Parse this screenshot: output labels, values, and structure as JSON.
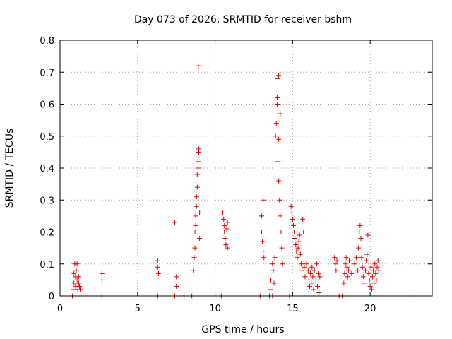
{
  "chart_data": {
    "type": "scatter",
    "title": "Day 073 of 2026, SRMTID for receiver bshm",
    "xlabel": "GPS time / hours",
    "ylabel": "SRMTID / TECUs",
    "xlim": [
      0,
      24
    ],
    "ylim": [
      0,
      0.8
    ],
    "xticks": [
      0,
      5,
      10,
      15,
      20
    ],
    "xtick_labels": [
      "0",
      "5",
      "10",
      "15",
      "20"
    ],
    "yticks": [
      0,
      0.1,
      0.2,
      0.3,
      0.4,
      0.5,
      0.6,
      0.7,
      0.8
    ],
    "ytick_labels": [
      "0",
      "0.1",
      "0.2",
      "0.3",
      "0.4",
      "0.5",
      "0.6",
      "0.7",
      "0.8"
    ],
    "grid": true,
    "marker": "+",
    "color": "#e00000",
    "series": [
      {
        "name": "SRMTID",
        "points": [
          [
            0.8,
            0.0
          ],
          [
            0.85,
            0.02
          ],
          [
            0.9,
            0.04
          ],
          [
            0.9,
            0.07
          ],
          [
            0.95,
            0.1
          ],
          [
            1.0,
            0.06
          ],
          [
            1.0,
            0.03
          ],
          [
            1.05,
            0.08
          ],
          [
            1.1,
            0.1
          ],
          [
            1.1,
            0.05
          ],
          [
            1.15,
            0.02
          ],
          [
            1.2,
            0.06
          ],
          [
            1.2,
            0.04
          ],
          [
            1.25,
            0.03
          ],
          [
            1.3,
            0.02
          ],
          [
            2.7,
            0.07
          ],
          [
            2.7,
            0.05
          ],
          [
            2.7,
            0.0
          ],
          [
            6.3,
            0.11
          ],
          [
            6.3,
            0.09
          ],
          [
            6.35,
            0.07
          ],
          [
            6.3,
            0.0
          ],
          [
            7.4,
            0.23
          ],
          [
            7.5,
            0.06
          ],
          [
            7.5,
            0.03
          ],
          [
            7.4,
            0.0
          ],
          [
            8.0,
            0.0
          ],
          [
            8.5,
            0.0
          ],
          [
            8.6,
            0.08
          ],
          [
            8.65,
            0.12
          ],
          [
            8.7,
            0.15
          ],
          [
            8.7,
            0.2
          ],
          [
            8.75,
            0.22
          ],
          [
            8.75,
            0.25
          ],
          [
            8.8,
            0.28
          ],
          [
            8.8,
            0.31
          ],
          [
            8.85,
            0.34
          ],
          [
            8.85,
            0.38
          ],
          [
            8.9,
            0.4
          ],
          [
            8.9,
            0.42
          ],
          [
            8.95,
            0.45
          ],
          [
            8.95,
            0.46
          ],
          [
            9.0,
            0.26
          ],
          [
            9.0,
            0.18
          ],
          [
            8.92,
            0.72
          ],
          [
            10.4,
            0.0
          ],
          [
            10.5,
            0.26
          ],
          [
            10.55,
            0.24
          ],
          [
            10.6,
            0.22
          ],
          [
            10.6,
            0.2
          ],
          [
            10.65,
            0.18
          ],
          [
            10.7,
            0.16
          ],
          [
            10.75,
            0.21
          ],
          [
            10.8,
            0.15
          ],
          [
            10.8,
            0.23
          ],
          [
            12.9,
            0.0
          ],
          [
            13.0,
            0.25
          ],
          [
            13.0,
            0.2
          ],
          [
            13.05,
            0.17
          ],
          [
            13.1,
            0.14
          ],
          [
            13.1,
            0.3
          ],
          [
            13.15,
            0.12
          ],
          [
            13.5,
            0.0
          ],
          [
            13.55,
            0.02
          ],
          [
            13.6,
            0.05
          ],
          [
            13.7,
            0.1
          ],
          [
            13.7,
            0.0
          ],
          [
            13.75,
            0.08
          ],
          [
            13.8,
            0.04
          ],
          [
            13.85,
            0.12
          ],
          [
            13.9,
            0.5
          ],
          [
            13.95,
            0.54
          ],
          [
            14.0,
            0.6
          ],
          [
            14.0,
            0.62
          ],
          [
            14.05,
            0.68
          ],
          [
            14.1,
            0.69
          ],
          [
            14.05,
            0.42
          ],
          [
            14.1,
            0.36
          ],
          [
            14.15,
            0.3
          ],
          [
            14.2,
            0.25
          ],
          [
            14.25,
            0.2
          ],
          [
            14.3,
            0.15
          ],
          [
            14.35,
            0.1
          ],
          [
            14.1,
            0.49
          ],
          [
            14.2,
            0.57
          ],
          [
            14.8,
            0.0
          ],
          [
            14.9,
            0.28
          ],
          [
            14.95,
            0.26
          ],
          [
            15.0,
            0.24
          ],
          [
            15.05,
            0.22
          ],
          [
            15.1,
            0.2
          ],
          [
            15.15,
            0.18
          ],
          [
            15.2,
            0.16
          ],
          [
            15.25,
            0.14
          ],
          [
            15.3,
            0.12
          ],
          [
            15.35,
            0.15
          ],
          [
            15.4,
            0.17
          ],
          [
            15.45,
            0.19
          ],
          [
            15.5,
            0.13
          ],
          [
            15.55,
            0.1
          ],
          [
            15.6,
            0.08
          ],
          [
            15.65,
            0.24
          ],
          [
            15.7,
            0.2
          ],
          [
            15.75,
            0.09
          ],
          [
            15.8,
            0.06
          ],
          [
            15.9,
            0.1
          ],
          [
            16.0,
            0.08
          ],
          [
            16.05,
            0.05
          ],
          [
            16.1,
            0.03
          ],
          [
            16.15,
            0.07
          ],
          [
            16.2,
            0.04
          ],
          [
            16.25,
            0.09
          ],
          [
            16.3,
            0.06
          ],
          [
            16.35,
            0.02
          ],
          [
            16.4,
            0.08
          ],
          [
            16.5,
            0.05
          ],
          [
            16.55,
            0.1
          ],
          [
            16.6,
            0.03
          ],
          [
            16.65,
            0.07
          ],
          [
            16.7,
            0.01
          ],
          [
            16.75,
            0.06
          ],
          [
            17.7,
            0.12
          ],
          [
            17.75,
            0.1
          ],
          [
            17.8,
            0.08
          ],
          [
            17.85,
            0.11
          ],
          [
            18.0,
            0.0
          ],
          [
            18.2,
            0.0
          ],
          [
            18.3,
            0.04
          ],
          [
            18.35,
            0.07
          ],
          [
            18.4,
            0.1
          ],
          [
            18.45,
            0.12
          ],
          [
            18.5,
            0.09
          ],
          [
            18.55,
            0.06
          ],
          [
            18.6,
            0.08
          ],
          [
            18.65,
            0.11
          ],
          [
            18.7,
            0.05
          ],
          [
            18.8,
            0.07
          ],
          [
            19.0,
            0.1
          ],
          [
            19.1,
            0.12
          ],
          [
            19.2,
            0.08
          ],
          [
            19.25,
            0.15
          ],
          [
            19.3,
            0.2
          ],
          [
            19.35,
            0.22
          ],
          [
            19.4,
            0.18
          ],
          [
            19.45,
            0.12
          ],
          [
            19.5,
            0.09
          ],
          [
            19.55,
            0.06
          ],
          [
            19.6,
            0.04
          ],
          [
            19.7,
            0.08
          ],
          [
            19.75,
            0.11
          ],
          [
            19.8,
            0.13
          ],
          [
            19.85,
            0.19
          ],
          [
            19.9,
            0.07
          ],
          [
            19.95,
            0.05
          ],
          [
            20.0,
            0.03
          ],
          [
            20.05,
            0.09
          ],
          [
            20.1,
            0.02
          ],
          [
            20.15,
            0.06
          ],
          [
            20.2,
            0.08
          ],
          [
            20.25,
            0.04
          ],
          [
            20.3,
            0.1
          ],
          [
            20.35,
            0.07
          ],
          [
            20.4,
            0.05
          ],
          [
            20.45,
            0.09
          ],
          [
            20.5,
            0.11
          ],
          [
            20.55,
            0.08
          ],
          [
            22.7,
            0.0
          ]
        ]
      }
    ]
  }
}
